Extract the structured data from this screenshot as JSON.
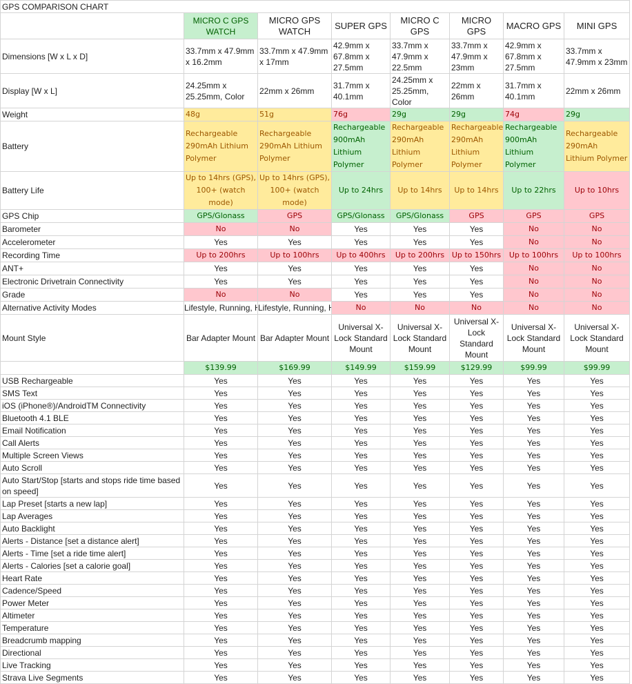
{
  "title": "GPS COMPARISON CHART",
  "columns": [
    "MICRO C GPS WATCH",
    "MICRO GPS WATCH",
    "SUPER GPS",
    "MICRO C GPS",
    "MICRO GPS",
    "MACRO GPS",
    "MINI GPS"
  ],
  "column_fills": [
    "#c6efce",
    null,
    null,
    null,
    null,
    null,
    null
  ],
  "rows": [
    {
      "label": "Dimensions [W x L x D]",
      "cells": [
        "33.7mm x 47.9mm x 16.2mm",
        "33.7mm x 47.9mm x 17mm",
        "42.9mm x 67.8mm x 27.5mm",
        "33.7mm x 47.9mm x 22.5mm",
        "33.7mm x 47.9mm x 23mm",
        "42.9mm x 67.8mm x 27.5mm",
        "33.7mm x 47.9mm x 23mm"
      ]
    },
    {
      "label": "Display [W x L]",
      "cells": [
        "24.25mm x 25.25mm, Color",
        "22mm x 26mm",
        "31.7mm x 40.1mm",
        "24.25mm x 25.25mm, Color",
        "22mm x 26mm",
        "31.7mm x 40.1mm",
        "22mm x 26mm"
      ]
    },
    {
      "label": "Weight",
      "cells": [
        "48g",
        "51g",
        "76g",
        "29g",
        "29g",
        "74g",
        "29g"
      ],
      "fills": [
        "#ffeb9c",
        "#ffeb9c",
        "#ffc7ce",
        "#c6efce",
        "#c6efce",
        "#ffc7ce",
        "#c6efce"
      ]
    },
    {
      "label": "Battery",
      "cells": [
        "Rechargeable 290mAh Lithium Polymer",
        "Rechargeable 290mAh Lithium Polymer",
        "Rechargeable 900mAh Lithium Polymer",
        "Rechargeable 290mAh Lithium Polymer",
        "Rechargeable 290mAh Lithium Polymer",
        "Rechargeable 900mAh Lithium Polymer",
        "Rechargeable 290mAh Lithium Polymer"
      ],
      "fills": [
        "#ffeb9c",
        "#ffeb9c",
        "#c6efce",
        "#ffeb9c",
        "#ffeb9c",
        "#c6efce",
        "#ffeb9c"
      ]
    },
    {
      "label": "Battery Life",
      "cells": [
        "Up to 14hrs (GPS), 100+ (watch mode)",
        "Up to 14hrs (GPS), 100+ (watch mode)",
        "Up to 24hrs",
        "Up to 14hrs",
        "Up to 14hrs",
        "Up to 22hrs",
        "Up to 10hrs"
      ],
      "fills": [
        "#ffeb9c",
        "#ffeb9c",
        "#c6efce",
        "#ffeb9c",
        "#ffeb9c",
        "#c6efce",
        "#ffc7ce"
      ]
    },
    {
      "label": "GPS Chip",
      "cells": [
        "GPS/Glonass",
        "GPS",
        "GPS/Glonass",
        "GPS/Glonass",
        "GPS",
        "GPS",
        "GPS"
      ],
      "fills": [
        "#c6efce",
        "#ffc7ce",
        "#c6efce",
        "#c6efce",
        "#ffc7ce",
        "#ffc7ce",
        "#ffc7ce"
      ]
    },
    {
      "label": "Barometer",
      "cells": [
        "No",
        "No",
        "Yes",
        "Yes",
        "Yes",
        "No",
        "No"
      ],
      "fills": [
        "#ffc7ce",
        "#ffc7ce",
        null,
        null,
        null,
        "#ffc7ce",
        "#ffc7ce"
      ]
    },
    {
      "label": "Accelerometer",
      "cells": [
        "Yes",
        "Yes",
        "Yes",
        "Yes",
        "Yes",
        "No",
        "No"
      ],
      "fills": [
        null,
        null,
        null,
        null,
        null,
        "#ffc7ce",
        "#ffc7ce"
      ]
    },
    {
      "label": "Recording Time",
      "cells": [
        "Up to 200hrs",
        "Up to 100hrs",
        "Up to 400hrs",
        "Up to 200hrs",
        "Up to 150hrs",
        "Up to 100hrs",
        "Up to 100hrs"
      ],
      "fills": [
        "#ffc7ce",
        "#ffc7ce",
        "#ffc7ce",
        "#ffc7ce",
        "#ffc7ce",
        "#ffc7ce",
        "#ffc7ce"
      ]
    },
    {
      "label": "ANT+",
      "cells": [
        "Yes",
        "Yes",
        "Yes",
        "Yes",
        "Yes",
        "No",
        "No"
      ],
      "fills": [
        null,
        null,
        null,
        null,
        null,
        "#ffc7ce",
        "#ffc7ce"
      ]
    },
    {
      "label": "Electronic Drivetrain Connectivity",
      "cells": [
        "Yes",
        "Yes",
        "Yes",
        "Yes",
        "Yes",
        "No",
        "No"
      ],
      "fills": [
        null,
        null,
        null,
        null,
        null,
        "#ffc7ce",
        "#ffc7ce"
      ]
    },
    {
      "label": "Grade",
      "cells": [
        "No",
        "No",
        "Yes",
        "Yes",
        "Yes",
        "No",
        "No"
      ],
      "fills": [
        "#ffc7ce",
        "#ffc7ce",
        null,
        null,
        null,
        "#ffc7ce",
        "#ffc7ce"
      ]
    },
    {
      "label": "Alternative Activity Modes",
      "cells": [
        "Lifestyle, Running, Hiking",
        "Lifestyle, Running, Hiking",
        "No",
        "No",
        "No",
        "No",
        "No"
      ],
      "fills": [
        null,
        null,
        "#ffc7ce",
        "#ffc7ce",
        "#ffc7ce",
        "#ffc7ce",
        "#ffc7ce"
      ]
    },
    {
      "label": "Mount Style",
      "cells": [
        "Bar Adapter Mount",
        "Bar Adapter Mount",
        "Universal X-Lock Standard Mount",
        "Universal X-Lock Standard Mount",
        "Universal X-Lock Standard Mount",
        "Universal X-Lock Standard Mount",
        "Universal X-Lock Standard Mount"
      ]
    },
    {
      "label": null,
      "cells": [
        "$139.99",
        "$169.99",
        "$149.99",
        "$159.99",
        "$129.99",
        "$99.99",
        "$99.99"
      ],
      "fills": [
        "#c6efce",
        "#c6efce",
        "#c6efce",
        "#c6efce",
        "#c6efce",
        "#c6efce",
        "#c6efce"
      ]
    },
    {
      "label": "USB Rechargeable",
      "cells": [
        "Yes",
        "Yes",
        "Yes",
        "Yes",
        "Yes",
        "Yes",
        "Yes"
      ]
    },
    {
      "label": "SMS Text",
      "cells": [
        "Yes",
        "Yes",
        "Yes",
        "Yes",
        "Yes",
        "Yes",
        "Yes"
      ]
    },
    {
      "label": "iOS (iPhone®)/AndroidTM Connectivity",
      "cells": [
        "Yes",
        "Yes",
        "Yes",
        "Yes",
        "Yes",
        "Yes",
        "Yes"
      ]
    },
    {
      "label": "Bluetooth 4.1 BLE",
      "cells": [
        "Yes",
        "Yes",
        "Yes",
        "Yes",
        "Yes",
        "Yes",
        "Yes"
      ]
    },
    {
      "label": "Email Notification",
      "cells": [
        "Yes",
        "Yes",
        "Yes",
        "Yes",
        "Yes",
        "Yes",
        "Yes"
      ]
    },
    {
      "label": "Call Alerts",
      "cells": [
        "Yes",
        "Yes",
        "Yes",
        "Yes",
        "Yes",
        "Yes",
        "Yes"
      ]
    },
    {
      "label": "Multiple Screen Views",
      "cells": [
        "Yes",
        "Yes",
        "Yes",
        "Yes",
        "Yes",
        "Yes",
        "Yes"
      ]
    },
    {
      "label": "Auto Scroll",
      "cells": [
        "Yes",
        "Yes",
        "Yes",
        "Yes",
        "Yes",
        "Yes",
        "Yes"
      ]
    },
    {
      "label": "Auto Start/Stop [starts and stops ride time based on speed]",
      "cells": [
        "Yes",
        "Yes",
        "Yes",
        "Yes",
        "Yes",
        "Yes",
        "Yes"
      ]
    },
    {
      "label": "Lap Preset [starts a new lap]",
      "cells": [
        "Yes",
        "Yes",
        "Yes",
        "Yes",
        "Yes",
        "Yes",
        "Yes"
      ]
    },
    {
      "label": "Lap Averages",
      "cells": [
        "Yes",
        "Yes",
        "Yes",
        "Yes",
        "Yes",
        "Yes",
        "Yes"
      ]
    },
    {
      "label": "Auto Backlight",
      "cells": [
        "Yes",
        "Yes",
        "Yes",
        "Yes",
        "Yes",
        "Yes",
        "Yes"
      ]
    },
    {
      "label": "Alerts - Distance [set a distance alert]",
      "cells": [
        "Yes",
        "Yes",
        "Yes",
        "Yes",
        "Yes",
        "Yes",
        "Yes"
      ]
    },
    {
      "label": "Alerts - Time [set a ride time alert]",
      "cells": [
        "Yes",
        "Yes",
        "Yes",
        "Yes",
        "Yes",
        "Yes",
        "Yes"
      ]
    },
    {
      "label": "Alerts - Calories [set a calorie goal]",
      "cells": [
        "Yes",
        "Yes",
        "Yes",
        "Yes",
        "Yes",
        "Yes",
        "Yes"
      ]
    },
    {
      "label": "Heart Rate",
      "cells": [
        "Yes",
        "Yes",
        "Yes",
        "Yes",
        "Yes",
        "Yes",
        "Yes"
      ]
    },
    {
      "label": "Cadence/Speed",
      "cells": [
        "Yes",
        "Yes",
        "Yes",
        "Yes",
        "Yes",
        "Yes",
        "Yes"
      ]
    },
    {
      "label": "Power Meter",
      "cells": [
        "Yes",
        "Yes",
        "Yes",
        "Yes",
        "Yes",
        "Yes",
        "Yes"
      ]
    },
    {
      "label": "Altimeter",
      "cells": [
        "Yes",
        "Yes",
        "Yes",
        "Yes",
        "Yes",
        "Yes",
        "Yes"
      ]
    },
    {
      "label": "Temperature",
      "cells": [
        "Yes",
        "Yes",
        "Yes",
        "Yes",
        "Yes",
        "Yes",
        "Yes"
      ]
    },
    {
      "label": "Breadcrumb mapping",
      "cells": [
        "Yes",
        "Yes",
        "Yes",
        "Yes",
        "Yes",
        "Yes",
        "Yes"
      ]
    },
    {
      "label": "Directional",
      "cells": [
        "Yes",
        "Yes",
        "Yes",
        "Yes",
        "Yes",
        "Yes",
        "Yes"
      ]
    },
    {
      "label": "Live Tracking",
      "cells": [
        "Yes",
        "Yes",
        "Yes",
        "Yes",
        "Yes",
        "Yes",
        "Yes"
      ]
    },
    {
      "label": "Strava Live Segments",
      "cells": [
        "Yes",
        "Yes",
        "Yes",
        "Yes",
        "Yes",
        "Yes",
        "Yes"
      ]
    }
  ]
}
